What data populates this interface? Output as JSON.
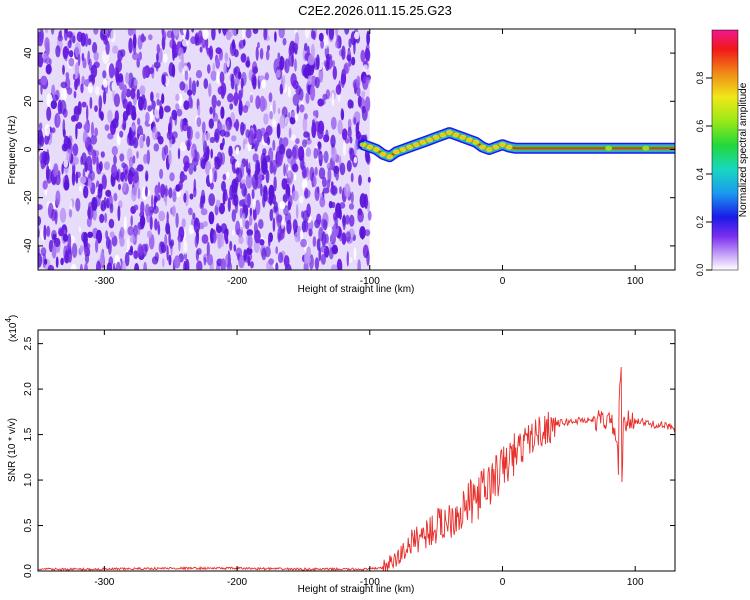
{
  "title": "C2E2.2026.011.15.25.G23",
  "colors": {
    "spec_purple": "#6a1ee0",
    "snr_line": "#e8302c",
    "ridge_core": "#e8302c",
    "ridge_edge": "#3aa0f0"
  },
  "chart_data": [
    {
      "type": "heatmap",
      "name": "spectrogram",
      "xlabel": "Height of straight line (km)",
      "ylabel": "Frequency (Hz)",
      "xlim": [
        -350,
        130
      ],
      "ylim": [
        -50,
        50
      ],
      "x_ticks": [
        -300,
        -200,
        -100,
        0,
        100
      ],
      "x_tick_labels": [
        "-300",
        "-200",
        "-100",
        "0",
        "100"
      ],
      "y_ticks": [
        40,
        20,
        0,
        -20,
        -40
      ],
      "y_tick_labels": [
        "40",
        "20",
        "0",
        "-20",
        "-40"
      ],
      "noise_region_x": [
        -350,
        -100
      ],
      "ridge": {
        "x": [
          -105,
          -100,
          -95,
          -90,
          -85,
          -80,
          -75,
          -70,
          -65,
          -60,
          -55,
          -50,
          -45,
          -40,
          -35,
          -30,
          -25,
          -20,
          -15,
          -10,
          -5,
          0,
          5,
          10,
          20,
          40,
          60,
          80,
          100,
          120,
          130
        ],
        "y": [
          2,
          1,
          0,
          -2,
          -3,
          -1,
          0,
          1,
          2,
          3,
          4,
          5,
          6,
          7,
          6,
          5,
          4,
          3,
          1,
          0,
          1,
          2,
          1,
          0.5,
          0.5,
          0.5,
          0.5,
          0.5,
          0.5,
          0.5,
          0.5
        ]
      },
      "colorbar": {
        "label": "Normalized spectral amplitude",
        "range": [
          0,
          1
        ],
        "ticks": [
          0.0,
          0.2,
          0.4,
          0.6,
          0.8
        ],
        "tick_labels": [
          "0.0",
          "0.2",
          "0.4",
          "0.6",
          "0.8"
        ]
      }
    },
    {
      "type": "line",
      "name": "snr",
      "xlabel": "Height of straight line (km)",
      "ylabel": "SNR (10 * v/v)",
      "y_multiplier": "(x10",
      "y_multiplier_exp": "4",
      "y_multiplier_close": ")",
      "xlim": [
        -350,
        130
      ],
      "ylim": [
        0,
        2.65
      ],
      "x_ticks": [
        -300,
        -200,
        -100,
        0,
        100
      ],
      "x_tick_labels": [
        "-300",
        "-200",
        "-100",
        "0",
        "100"
      ],
      "y_ticks": [
        0.0,
        0.5,
        1.0,
        1.5,
        2.0,
        2.5
      ],
      "y_tick_labels": [
        "0.0",
        "0.5",
        "1.0",
        "1.5",
        "2.0",
        "2.5"
      ],
      "series": [
        {
          "name": "SNR",
          "x": [
            -350,
            -300,
            -250,
            -200,
            -150,
            -100,
            -90,
            -80,
            -70,
            -60,
            -50,
            -40,
            -30,
            -20,
            -10,
            0,
            10,
            20,
            30,
            40,
            50,
            60,
            70,
            80,
            85,
            88,
            90,
            95,
            100,
            110,
            120,
            130
          ],
          "y": [
            0.02,
            0.02,
            0.03,
            0.03,
            0.02,
            0.02,
            0.04,
            0.12,
            0.3,
            0.4,
            0.48,
            0.58,
            0.68,
            0.8,
            0.95,
            1.12,
            1.3,
            1.45,
            1.55,
            1.62,
            1.64,
            1.66,
            1.66,
            1.66,
            1.55,
            1.0,
            1.55,
            1.65,
            1.66,
            1.62,
            1.6,
            1.58
          ]
        }
      ]
    }
  ]
}
